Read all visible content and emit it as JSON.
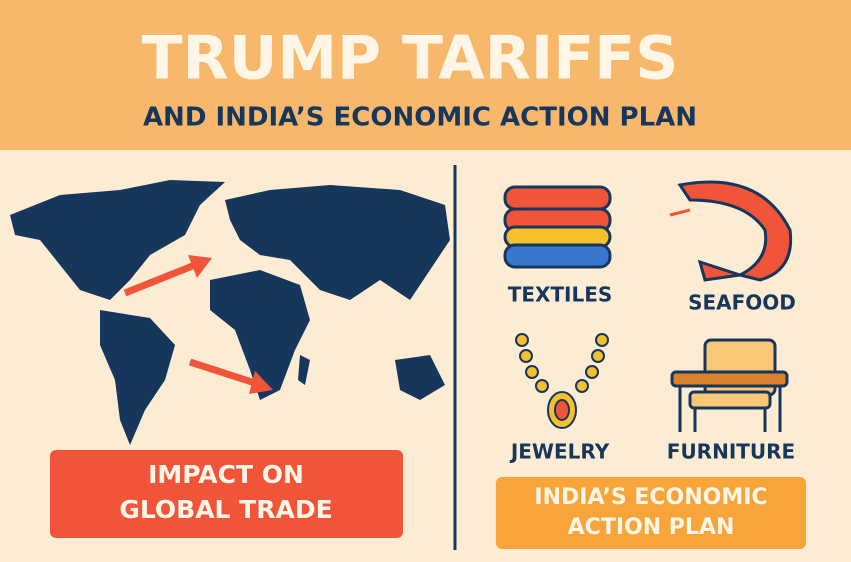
{
  "header": {
    "title": "TRUMP TARIFFS",
    "subtitle": "AND INDIA’S ECONOMIC ACTION PLAN"
  },
  "left_panel": {
    "label_lines": [
      "IMPACT ON",
      "GLOBAL TRADE"
    ]
  },
  "right_panel": {
    "sectors": [
      "TEXTILES",
      "SEAFOOD",
      "JEWELRY",
      "FURNITURE"
    ],
    "label_lines": [
      "INDIA’S ECONOMIC",
      "ACTION PLAN"
    ]
  }
}
